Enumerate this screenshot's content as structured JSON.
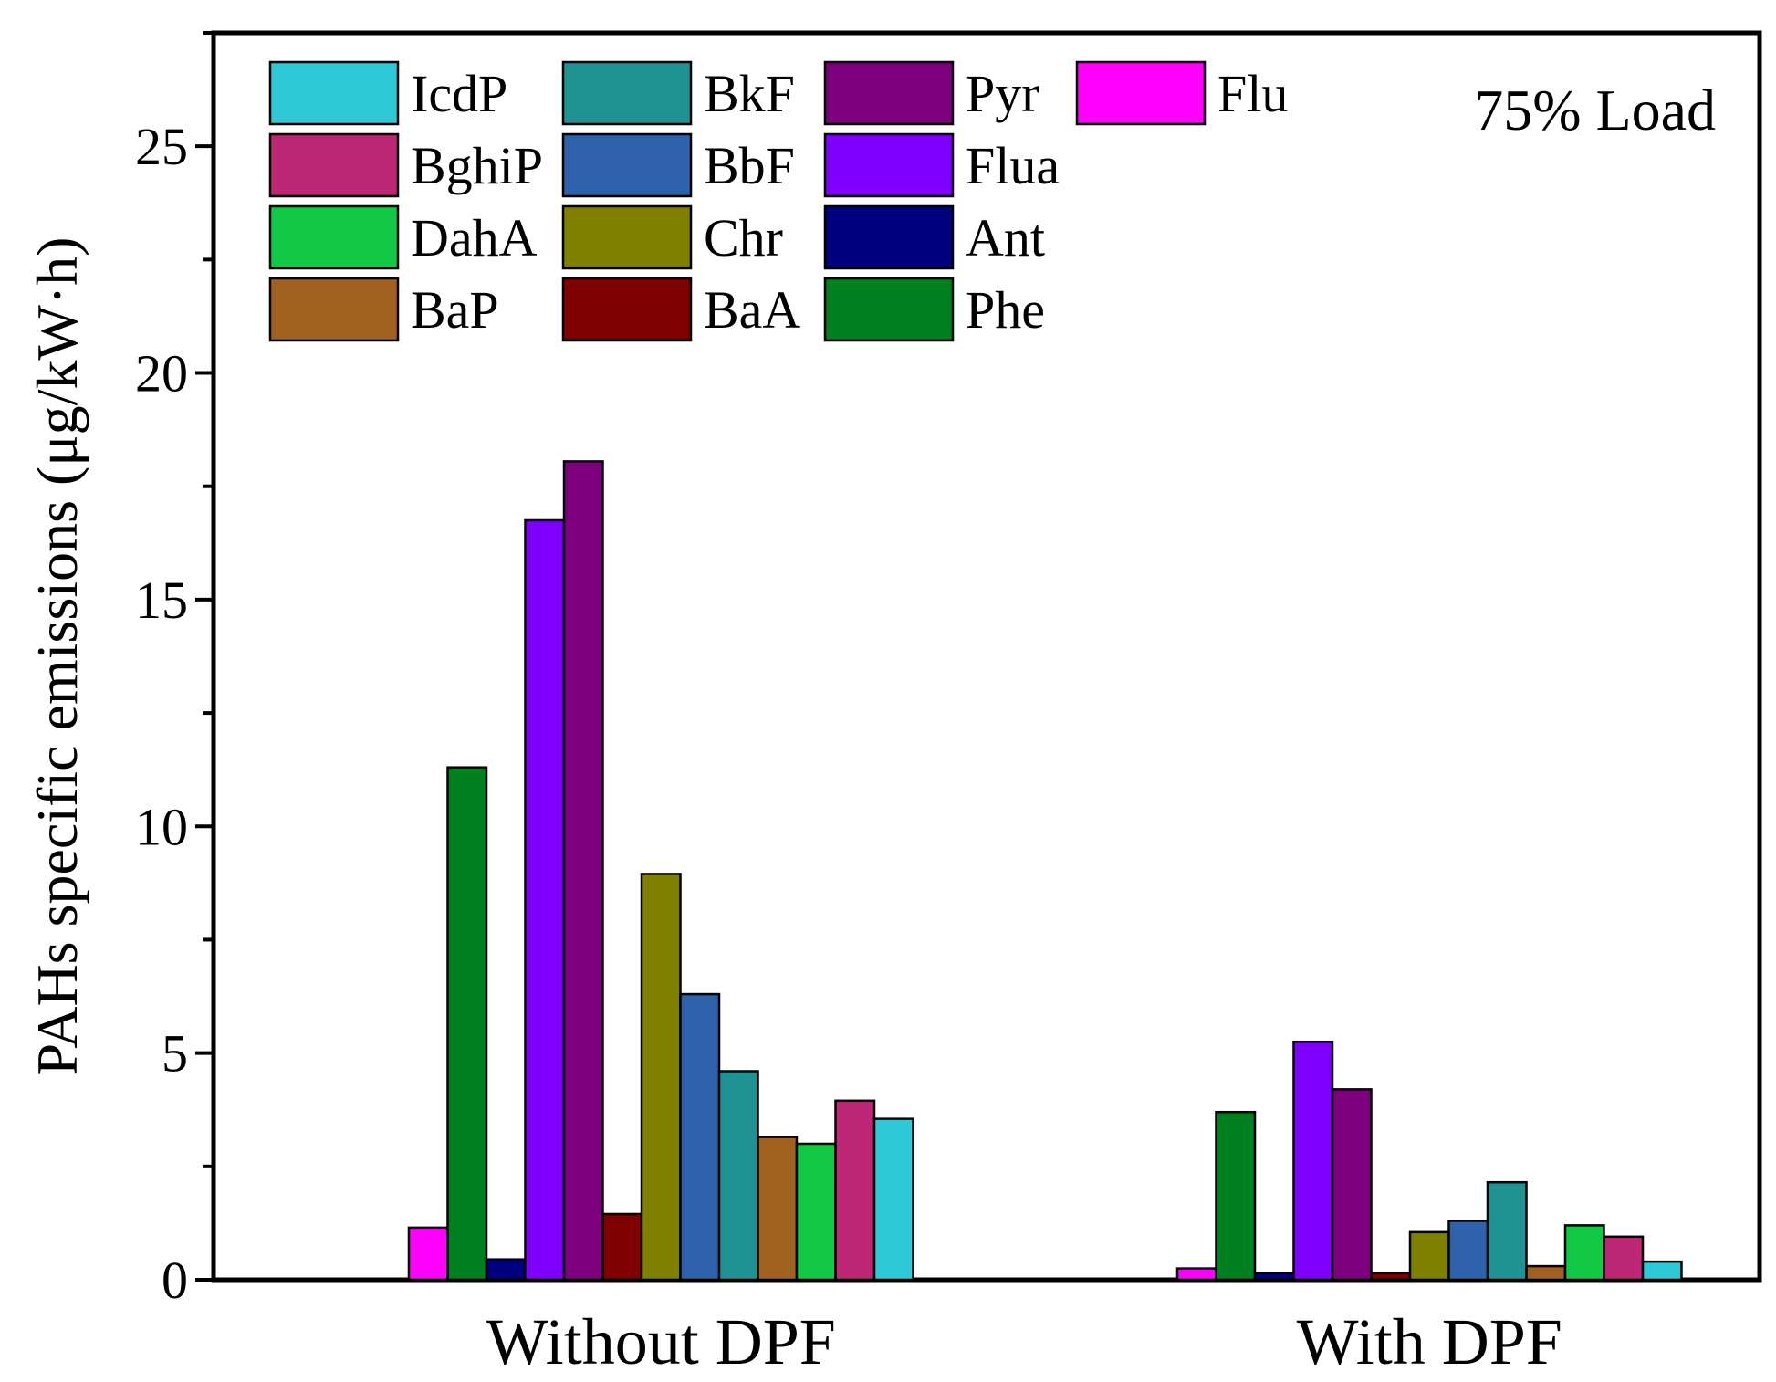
{
  "chart_data": {
    "type": "bar",
    "title": "",
    "annotation": "75% Load",
    "xlabel": "",
    "ylabel": "PAHs specific emissions (μg/kW·h)",
    "ylim": [
      0,
      27.5
    ],
    "yticks": [
      0,
      5,
      10,
      15,
      20,
      25
    ],
    "ytick_labels": [
      "0",
      "5",
      "10",
      "15",
      "20",
      "25"
    ],
    "categories": [
      "Without DPF",
      "With DPF"
    ],
    "legend_position": "top-left",
    "series": [
      {
        "name": "Flu",
        "color": "#FF00FF",
        "values": [
          1.15,
          0.25
        ]
      },
      {
        "name": "Phe",
        "color": "#007F1F",
        "values": [
          11.3,
          3.7
        ]
      },
      {
        "name": "Ant",
        "color": "#00007F",
        "values": [
          0.45,
          0.15
        ]
      },
      {
        "name": "Flua",
        "color": "#7F00FF",
        "values": [
          16.75,
          5.25
        ]
      },
      {
        "name": "Pyr",
        "color": "#7F007F",
        "values": [
          18.05,
          4.2
        ]
      },
      {
        "name": "BaA",
        "color": "#7F0000",
        "values": [
          1.45,
          0.15
        ]
      },
      {
        "name": "Chr",
        "color": "#7F7F00",
        "values": [
          8.95,
          1.05
        ]
      },
      {
        "name": "BbF",
        "color": "#2E62AA",
        "values": [
          6.3,
          1.3
        ]
      },
      {
        "name": "BkF",
        "color": "#1F9393",
        "values": [
          4.6,
          2.15
        ]
      },
      {
        "name": "BaP",
        "color": "#A0601F",
        "values": [
          3.15,
          0.3
        ]
      },
      {
        "name": "DahA",
        "color": "#11C944",
        "values": [
          3.0,
          1.2
        ]
      },
      {
        "name": "BghiP",
        "color": "#BD2775",
        "values": [
          3.95,
          0.95
        ]
      },
      {
        "name": "IcdP",
        "color": "#2EC9D6",
        "values": [
          3.55,
          0.4
        ]
      }
    ]
  },
  "legend_layout": [
    [
      "IcdP",
      "BkF",
      "Pyr",
      "Flu"
    ],
    [
      "BghiP",
      "BbF",
      "Flua"
    ],
    [
      "DahA",
      "Chr",
      "Ant"
    ],
    [
      "BaP",
      "BaA",
      "Phe"
    ]
  ]
}
